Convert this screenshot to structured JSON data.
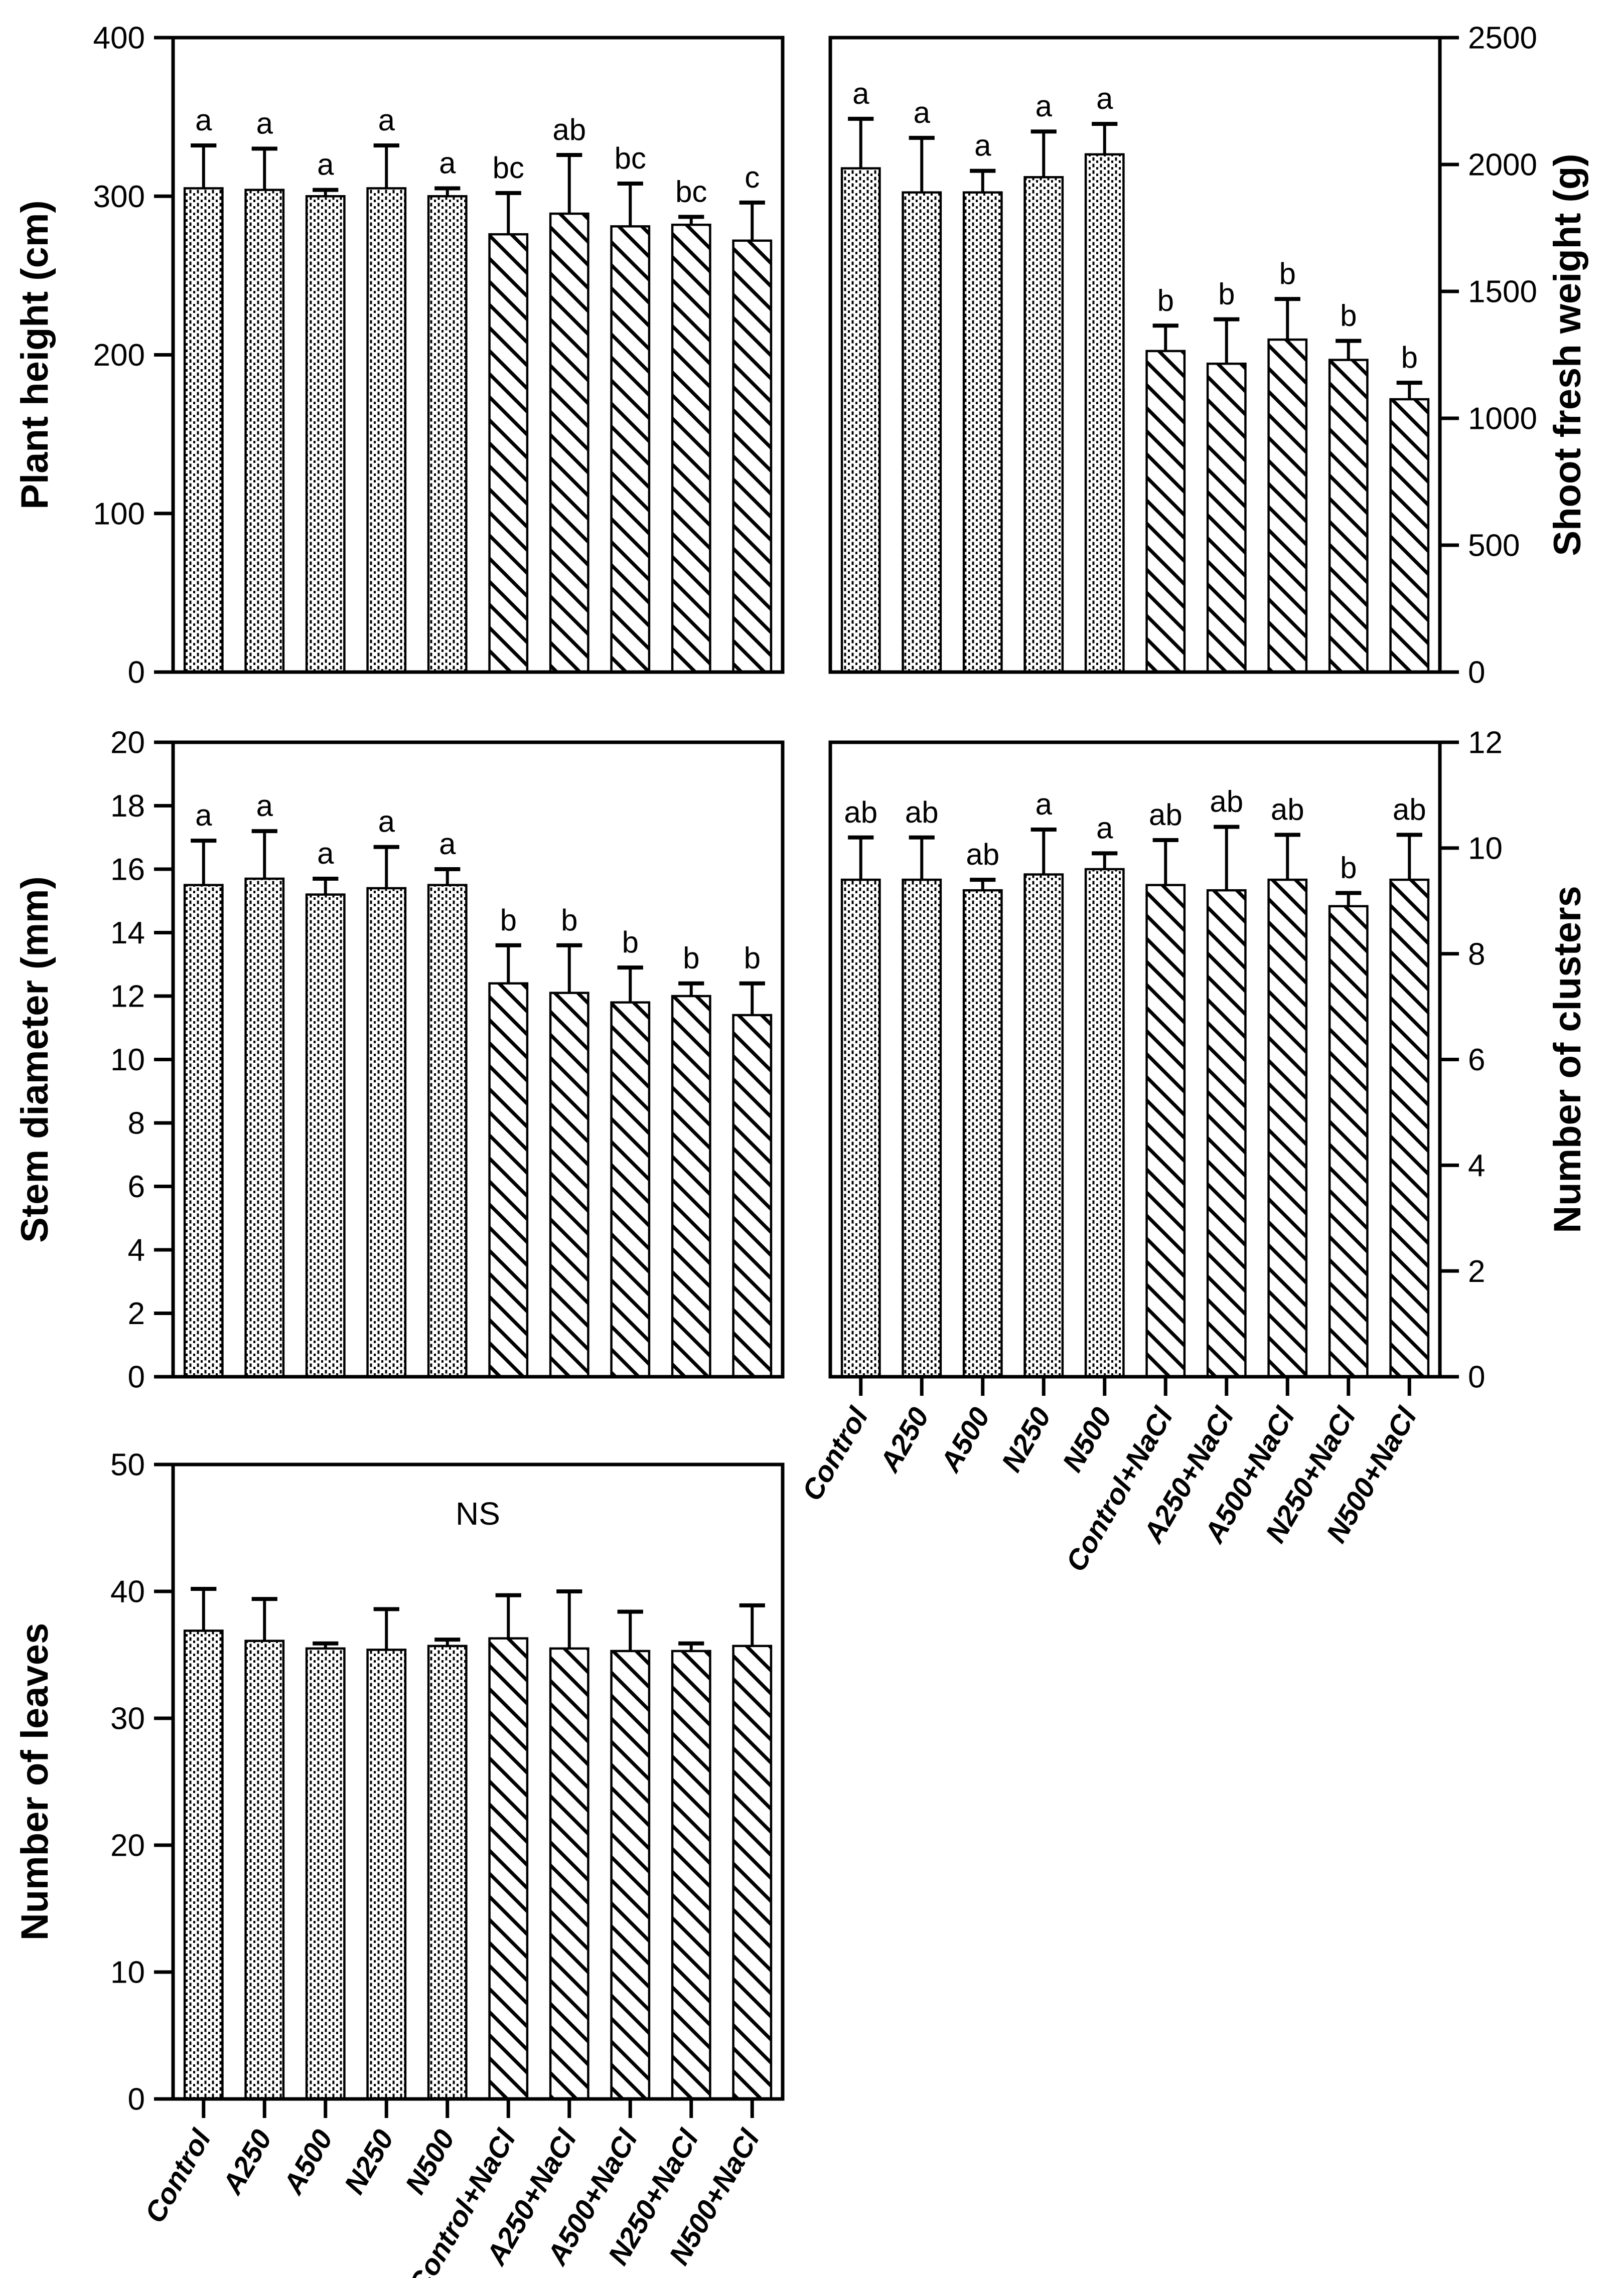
{
  "figure": {
    "background_color": "#ffffff",
    "foreground_color": "#000000",
    "categories": [
      "Control",
      "A250",
      "A500",
      "N250",
      "N500",
      "Control+NaCl",
      "A250+NaCl",
      "A500+NaCl",
      "N250+NaCl",
      "N500+NaCl"
    ],
    "bar_patterns": [
      "dots",
      "dots",
      "dots",
      "dots",
      "dots",
      "hatch",
      "hatch",
      "hatch",
      "hatch",
      "hatch"
    ]
  },
  "chart_data": [
    {
      "type": "bar",
      "id": "plant-height",
      "title": "",
      "xlabel": "",
      "ylabel": "Plant height (cm)",
      "axis_side": "left",
      "ylim": [
        0,
        400
      ],
      "yticks": [
        0,
        100,
        200,
        300,
        400
      ],
      "grid": false,
      "legend_position": "none",
      "show_x_labels": false,
      "annotation": "",
      "values": [
        305,
        304,
        300,
        305,
        300,
        276,
        289,
        281,
        282,
        272
      ],
      "errors": [
        27,
        26,
        4,
        27,
        5,
        26,
        37,
        27,
        5,
        24
      ],
      "sig_letters": [
        "a",
        "a",
        "a",
        "a",
        "a",
        "bc",
        "ab",
        "bc",
        "bc",
        "c"
      ]
    },
    {
      "type": "bar",
      "id": "shoot-fresh-weight",
      "title": "",
      "xlabel": "",
      "ylabel": "Shoot fresh weight (g)",
      "axis_side": "right",
      "ylim": [
        0,
        2500
      ],
      "yticks": [
        0,
        500,
        1000,
        1500,
        2000,
        2500
      ],
      "grid": false,
      "legend_position": "none",
      "show_x_labels": false,
      "annotation": "",
      "values": [
        1985,
        1890,
        1890,
        1950,
        2040,
        1265,
        1215,
        1310,
        1230,
        1075
      ],
      "errors": [
        195,
        215,
        85,
        180,
        120,
        100,
        175,
        160,
        75,
        65
      ],
      "sig_letters": [
        "a",
        "a",
        "a",
        "a",
        "a",
        "b",
        "b",
        "b",
        "b",
        "b"
      ]
    },
    {
      "type": "bar",
      "id": "stem-diameter",
      "title": "",
      "xlabel": "",
      "ylabel": "Stem diameter (mm)",
      "axis_side": "left",
      "ylim": [
        0,
        20
      ],
      "yticks": [
        0,
        2,
        4,
        6,
        8,
        10,
        12,
        14,
        16,
        18,
        20
      ],
      "grid": false,
      "legend_position": "none",
      "show_x_labels": false,
      "annotation": "",
      "values": [
        15.5,
        15.7,
        15.2,
        15.4,
        15.5,
        12.4,
        12.1,
        11.8,
        12.0,
        11.4
      ],
      "errors": [
        1.4,
        1.5,
        0.5,
        1.3,
        0.5,
        1.2,
        1.5,
        1.1,
        0.4,
        1.0
      ],
      "sig_letters": [
        "a",
        "a",
        "a",
        "a",
        "a",
        "b",
        "b",
        "b",
        "b",
        "b"
      ]
    },
    {
      "type": "bar",
      "id": "number-of-clusters",
      "title": "",
      "xlabel": "",
      "ylabel": "Number of clusters",
      "axis_side": "right",
      "ylim": [
        0,
        12
      ],
      "yticks": [
        0,
        2,
        4,
        6,
        8,
        10,
        12
      ],
      "grid": false,
      "legend_position": "none",
      "show_x_labels": true,
      "annotation": "",
      "values": [
        9.4,
        9.4,
        9.2,
        9.5,
        9.6,
        9.3,
        9.2,
        9.4,
        8.9,
        9.4
      ],
      "errors": [
        0.8,
        0.8,
        0.2,
        0.85,
        0.3,
        0.85,
        1.2,
        0.85,
        0.25,
        0.85
      ],
      "sig_letters": [
        "ab",
        "ab",
        "ab",
        "a",
        "a",
        "ab",
        "ab",
        "ab",
        "b",
        "ab"
      ]
    },
    {
      "type": "bar",
      "id": "number-of-leaves",
      "title": "",
      "xlabel": "",
      "ylabel": "Number of leaves",
      "axis_side": "left",
      "ylim": [
        0,
        50
      ],
      "yticks": [
        0,
        10,
        20,
        30,
        40,
        50
      ],
      "grid": false,
      "legend_position": "none",
      "show_x_labels": true,
      "annotation": "NS",
      "values": [
        36.9,
        36.1,
        35.5,
        35.4,
        35.7,
        36.3,
        35.5,
        35.3,
        35.3,
        35.7
      ],
      "errors": [
        3.3,
        3.3,
        0.4,
        3.2,
        0.5,
        3.4,
        4.5,
        3.1,
        0.6,
        3.2
      ],
      "sig_letters": [
        "",
        "",
        "",
        "",
        "",
        "",
        "",
        "",
        "",
        ""
      ]
    }
  ]
}
